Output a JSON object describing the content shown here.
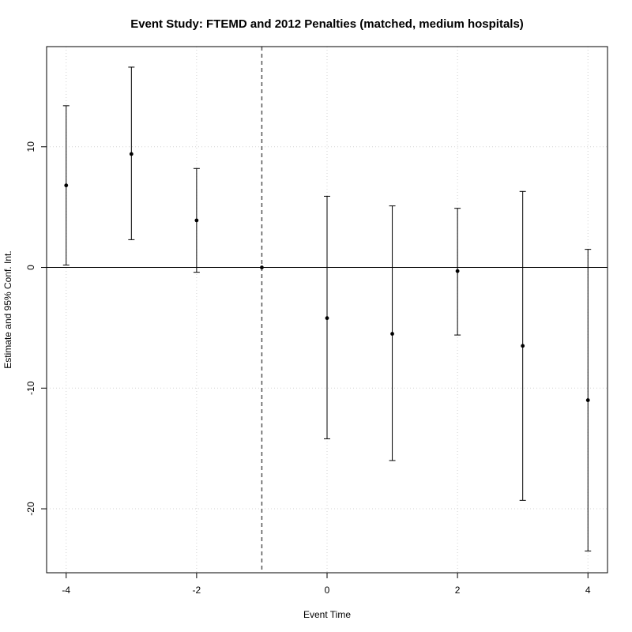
{
  "chart_data": {
    "type": "scatter",
    "title": "Event Study: FTEMD and 2012 Penalties (matched, medium hospitals)",
    "xlabel": "Event Time",
    "ylabel": "Estimate and 95% Conf. Int.",
    "xlim": [
      -4.3,
      4.3
    ],
    "ylim": [
      -25.3,
      18.3
    ],
    "x_ticks": [
      -4,
      -2,
      0,
      2,
      4
    ],
    "x_tick_labels": [
      "-4",
      "-2",
      "0",
      "2",
      "4"
    ],
    "y_ticks": [
      -20,
      -10,
      0,
      10
    ],
    "y_tick_labels": [
      "-20",
      "-10",
      "0",
      "10"
    ],
    "grid": true,
    "reference_hline": 0,
    "reference_vline": -1,
    "series": [
      {
        "points": [
          {
            "x": -4,
            "estimate": 6.8,
            "lower": 0.2,
            "upper": 13.4
          },
          {
            "x": -3,
            "estimate": 9.4,
            "lower": 2.3,
            "upper": 16.6
          },
          {
            "x": -2,
            "estimate": 3.9,
            "lower": -0.4,
            "upper": 8.2
          },
          {
            "x": -1,
            "estimate": 0.0,
            "lower": 0.0,
            "upper": 0.0
          },
          {
            "x": 0,
            "estimate": -4.2,
            "lower": -14.2,
            "upper": 5.9
          },
          {
            "x": 1,
            "estimate": -5.5,
            "lower": -16.0,
            "upper": 5.1
          },
          {
            "x": 2,
            "estimate": -0.3,
            "lower": -5.6,
            "upper": 4.9
          },
          {
            "x": 3,
            "estimate": -6.5,
            "lower": -19.3,
            "upper": 6.3
          },
          {
            "x": 4,
            "estimate": -11.0,
            "lower": -23.5,
            "upper": 1.5
          }
        ]
      }
    ]
  }
}
